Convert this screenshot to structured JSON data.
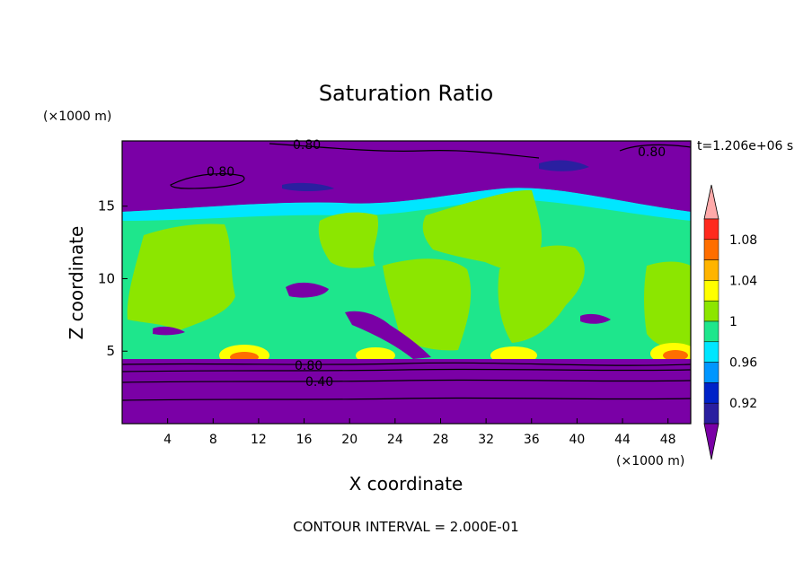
{
  "chart_data": {
    "type": "heatmap",
    "title": "Saturation Ratio",
    "xlabel": "X coordinate",
    "ylabel": "Z coordinate",
    "x_unit": "(×1000 m)",
    "y_unit": "(×1000 m)",
    "time_label": "t=1.206e+06 s",
    "footer": "CONTOUR INTERVAL = 2.000E-01",
    "xlim": [
      0,
      50
    ],
    "ylim": [
      0,
      19.5
    ],
    "x_ticks": [
      "4",
      "8",
      "12",
      "16",
      "20",
      "24",
      "28",
      "32",
      "36",
      "40",
      "44",
      "48"
    ],
    "y_ticks": [
      "5",
      "10",
      "15"
    ],
    "contour_labels": [
      "0.80",
      "0.80",
      "0.80",
      "0.80",
      "0.40"
    ],
    "colorbar": {
      "labels": [
        "1.08",
        "1.04",
        "1",
        "0.96",
        "0.92"
      ],
      "levels": [
        {
          "color": "#7a00a6"
        },
        {
          "color": "#2a1fa0"
        },
        {
          "color": "#0022c8"
        },
        {
          "color": "#0096ff"
        },
        {
          "color": "#00e6ff"
        },
        {
          "color": "#1ee68c"
        },
        {
          "color": "#8ce600"
        },
        {
          "color": "#ffff00"
        },
        {
          "color": "#ffb400"
        },
        {
          "color": "#ff6e00"
        },
        {
          "color": "#ff2a1e"
        },
        {
          "color": "#ffaaaa"
        }
      ]
    }
  }
}
